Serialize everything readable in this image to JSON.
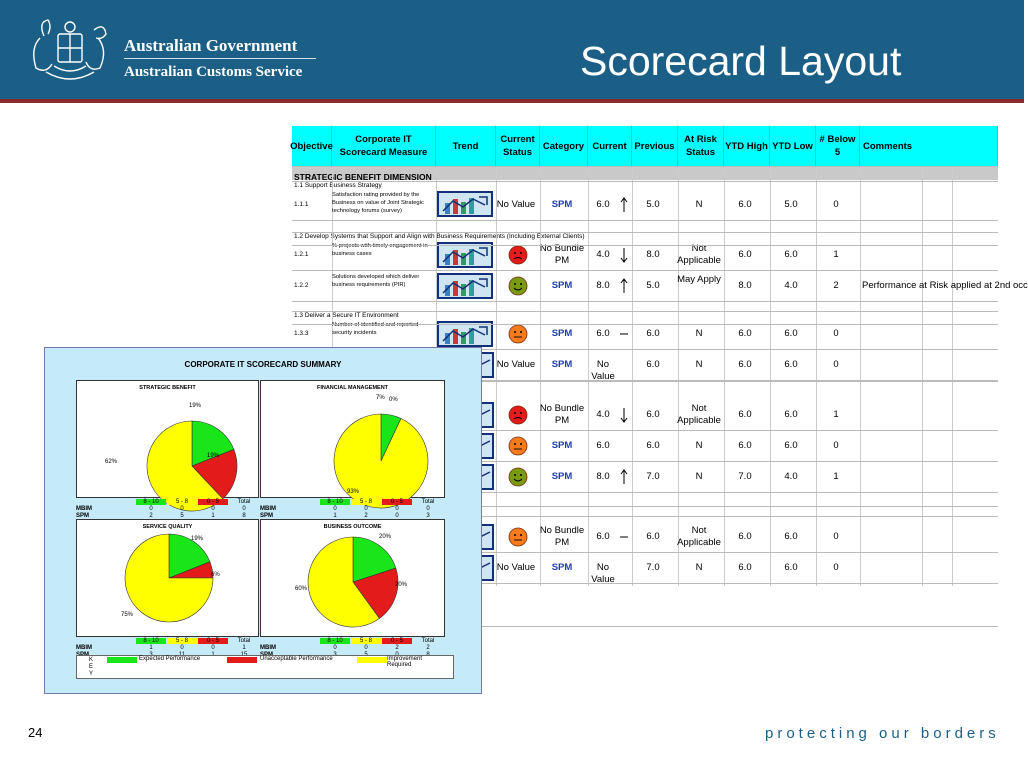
{
  "header": {
    "government": "Australian Government",
    "service": "Australian Customs Service",
    "title": "Scorecard Layout"
  },
  "footer": {
    "page_number": "24",
    "tagline": "protecting our borders"
  },
  "scorecard": {
    "columns": [
      "Objective",
      "Corporate IT Scorecard Measure",
      "Trend",
      "Current Status",
      "Category",
      "Current",
      "Previous",
      "At Risk Status",
      "YTD High",
      "YTD Low",
      "# Below 5",
      "Comments"
    ],
    "section": "STRATEGIC BENEFIT DIMENSION",
    "subsections": [
      "1.1  Support Business Strategy",
      "1.2  Develop Systems that Support and Align with Business Requirements (Including External Clients)",
      "1.3  Deliver a Secure IT Environment"
    ],
    "rows": [
      {
        "id": "1.1.1",
        "measure": "Satisfaction rating provided by the Business on value of Joint Strategic technology forums (survey)",
        "status": "No Value",
        "category": "SPM",
        "current": "6.0",
        "arrow": "up",
        "previous": "5.0",
        "risk": "N",
        "high": "6.0",
        "low": "5.0",
        "below": "0",
        "comment": ""
      },
      {
        "id": "1.2.1",
        "measure": "% projects with timely engagement in business cases",
        "face": "red",
        "category": "No Bundle PM",
        "current": "4.0",
        "arrow": "down",
        "previous": "8.0",
        "risk": "Not Applicable",
        "high": "6.0",
        "low": "6.0",
        "below": "1",
        "comment": ""
      },
      {
        "id": "1.2.2",
        "measure": "Solutions developed which deliver business requirements (PIR)",
        "face": "green",
        "category": "SPM",
        "current": "8.0",
        "arrow": "up",
        "previous": "5.0",
        "risk": "May Apply",
        "high": "8.0",
        "low": "4.0",
        "below": "2",
        "comment": "Performance at Risk applied at 2nd occ"
      },
      {
        "id": "1.3.3",
        "measure": "Number of identified and reported security incidents",
        "face": "orange",
        "category": "SPM",
        "current": "6.0",
        "arrow": "flat",
        "previous": "6.0",
        "risk": "N",
        "high": "6.0",
        "low": "6.0",
        "below": "0",
        "comment": ""
      },
      {
        "status": "No Value",
        "category": "SPM",
        "current": "No Value",
        "arrow": "",
        "previous": "6.0",
        "risk": "N",
        "high": "6.0",
        "low": "6.0",
        "below": "0"
      },
      {
        "face": "red",
        "category": "No Bundle PM",
        "current": "4.0",
        "arrow": "down",
        "previous": "6.0",
        "risk": "Not Applicable",
        "high": "6.0",
        "low": "6.0",
        "below": "1"
      },
      {
        "face": "orange",
        "category": "SPM",
        "current": "6.0",
        "arrow": "",
        "previous": "6.0",
        "risk": "N",
        "high": "6.0",
        "low": "6.0",
        "below": "0"
      },
      {
        "face": "green",
        "category": "SPM",
        "current": "8.0",
        "arrow": "up",
        "previous": "7.0",
        "risk": "N",
        "high": "7.0",
        "low": "4.0",
        "below": "1"
      },
      {
        "face": "orange",
        "category": "No Bundle PM",
        "current": "6.0",
        "arrow": "flat",
        "previous": "6.0",
        "risk": "Not Applicable",
        "high": "6.0",
        "low": "6.0",
        "below": "0"
      },
      {
        "status": "No Value",
        "category": "SPM",
        "current": "No Value",
        "arrow": "",
        "previous": "7.0",
        "risk": "N",
        "high": "6.0",
        "low": "6.0",
        "below": "0"
      }
    ]
  },
  "summary": {
    "title": "CORPORATE IT SCORECARD SUMMARY",
    "ranges": [
      "8 - 10",
      "5 - 8",
      "0 - 5",
      "Total"
    ],
    "row_labels": [
      "MBIM",
      "SPM"
    ],
    "panels": [
      {
        "title": "STRATEGIC BENEFIT",
        "pct": [
          "19%",
          "19%",
          "62%"
        ],
        "mbim": [
          "0",
          "0",
          "0",
          "0"
        ],
        "spm": [
          "2",
          "5",
          "1",
          "8"
        ]
      },
      {
        "title": "FINANCIAL MANAGEMENT",
        "pct": [
          "7%",
          "0%",
          "93%"
        ],
        "mbim": [
          "0",
          "0",
          "0",
          "0"
        ],
        "spm": [
          "1",
          "2",
          "0",
          "3"
        ]
      },
      {
        "title": "SERVICE QUALITY",
        "pct": [
          "19%",
          "6%",
          "75%"
        ],
        "mbim": [
          "1",
          "0",
          "0",
          "1"
        ],
        "spm": [
          "3",
          "11",
          "1",
          "15"
        ]
      },
      {
        "title": "BUSINESS OUTCOME",
        "pct": [
          "20%",
          "20%",
          "60%"
        ],
        "mbim": [
          "0",
          "0",
          "2",
          "2"
        ],
        "spm": [
          "3",
          "5",
          "0",
          "8"
        ]
      }
    ],
    "legend": {
      "key_letters": [
        "K",
        "E",
        "Y"
      ],
      "expected": "Expected Performance",
      "unacceptable": "Unacceptable Performance",
      "improvement": "Improvement Required"
    }
  },
  "chart_data": [
    {
      "type": "pie",
      "title": "STRATEGIC BENEFIT",
      "categories": [
        "8 - 10",
        "0 - 5",
        "5 - 8"
      ],
      "values": [
        19,
        19,
        62
      ]
    },
    {
      "type": "pie",
      "title": "FINANCIAL MANAGEMENT",
      "categories": [
        "8 - 10",
        "0 - 5",
        "5 - 8"
      ],
      "values": [
        7,
        0,
        93
      ]
    },
    {
      "type": "pie",
      "title": "SERVICE QUALITY",
      "categories": [
        "8 - 10",
        "0 - 5",
        "5 - 8"
      ],
      "values": [
        19,
        6,
        75
      ]
    },
    {
      "type": "pie",
      "title": "BUSINESS OUTCOME",
      "categories": [
        "8 - 10",
        "0 - 5",
        "5 - 8"
      ],
      "values": [
        20,
        20,
        60
      ]
    }
  ],
  "colors": {
    "header": "#1c5f86",
    "accent_rule": "#8b2a2a",
    "table_header": "#00ffff",
    "green": "#19e619",
    "yellow": "#ffff00",
    "red": "#e31b1b",
    "orange": "#f77b1c"
  }
}
